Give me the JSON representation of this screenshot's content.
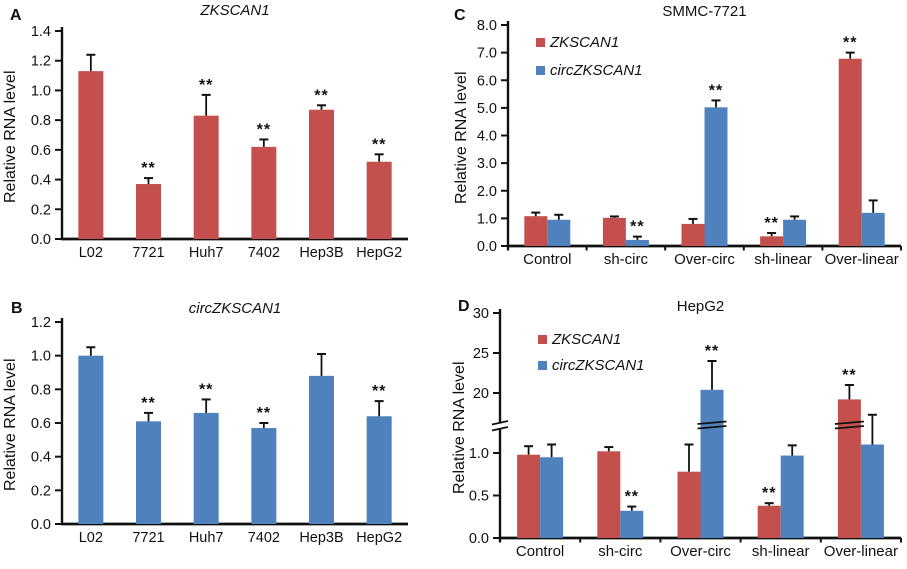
{
  "figure_title": "",
  "colors": {
    "zkscan1_series": "#C4504E",
    "circzkscan1_series": "#4F81BD",
    "ink": "#111111"
  },
  "chart_data": [
    {
      "panel_label": "A",
      "type": "bar",
      "title": "ZKSCAN1",
      "title_italic": true,
      "ylabel": "Relative RNA level",
      "xlabel": "",
      "grid": false,
      "legend": false,
      "categories": [
        "L02",
        "7721",
        "Huh7",
        "7402",
        "Hep3B",
        "HepG2"
      ],
      "axis": {
        "type": "linear",
        "min": 0,
        "max": 1.4,
        "ticks": [
          {
            "v": 0.0,
            "label": "0.0"
          },
          {
            "v": 0.2,
            "label": "0.2"
          },
          {
            "v": 0.4,
            "label": "0.4"
          },
          {
            "v": 0.6,
            "label": "0.6"
          },
          {
            "v": 0.8,
            "label": "0.8"
          },
          {
            "v": 1.0,
            "label": "1.0"
          },
          {
            "v": 1.2,
            "label": "1.2"
          },
          {
            "v": 1.4,
            "label": "1.4"
          }
        ]
      },
      "series": [
        {
          "name": "ZKSCAN1",
          "color": "#C4504E",
          "values": [
            1.13,
            0.37,
            0.83,
            0.62,
            0.87,
            0.52
          ],
          "errors": [
            0.11,
            0.04,
            0.14,
            0.05,
            0.03,
            0.05
          ],
          "sig": [
            "",
            "**",
            "**",
            "**",
            "**",
            "**"
          ]
        }
      ]
    },
    {
      "panel_label": "B",
      "type": "bar",
      "title": "circZKSCAN1",
      "title_italic": true,
      "ylabel": "Relative RNA level",
      "xlabel": "",
      "grid": false,
      "legend": false,
      "categories": [
        "L02",
        "7721",
        "Huh7",
        "7402",
        "Hep3B",
        "HepG2"
      ],
      "axis": {
        "type": "linear",
        "min": 0,
        "max": 1.2,
        "ticks": [
          {
            "v": 0.0,
            "label": "0.0"
          },
          {
            "v": 0.2,
            "label": "0.2"
          },
          {
            "v": 0.4,
            "label": "0.4"
          },
          {
            "v": 0.6,
            "label": "0.6"
          },
          {
            "v": 0.8,
            "label": "0.8"
          },
          {
            "v": 1.0,
            "label": "1.0"
          },
          {
            "v": 1.2,
            "label": "1.2"
          }
        ]
      },
      "series": [
        {
          "name": "circZKSCAN1",
          "color": "#4F81BD",
          "values": [
            1.0,
            0.61,
            0.66,
            0.57,
            0.88,
            0.64
          ],
          "errors": [
            0.05,
            0.05,
            0.08,
            0.03,
            0.13,
            0.09
          ],
          "sig": [
            "",
            "**",
            "**",
            "**",
            "",
            "**"
          ]
        }
      ]
    },
    {
      "panel_label": "C",
      "type": "bar",
      "title": "SMMC-7721",
      "title_italic": false,
      "ylabel": "Relative RNA level",
      "xlabel": "",
      "grid": false,
      "legend": true,
      "categories": [
        "Control",
        "sh-circ",
        "Over-circ",
        "sh-linear",
        "Over-linear"
      ],
      "axis": {
        "type": "linear",
        "min": 0,
        "max": 8.0,
        "ticks": [
          {
            "v": 0,
            "label": "0.0"
          },
          {
            "v": 1,
            "label": "1.0"
          },
          {
            "v": 2,
            "label": "2.0"
          },
          {
            "v": 3,
            "label": "3.0"
          },
          {
            "v": 4,
            "label": "4.0"
          },
          {
            "v": 5,
            "label": "5.0"
          },
          {
            "v": 6,
            "label": "6.0"
          },
          {
            "v": 7,
            "label": "7.0"
          },
          {
            "v": 8,
            "label": "8.0"
          }
        ]
      },
      "series": [
        {
          "name": "ZKSCAN1",
          "color": "#C4504E",
          "values": [
            1.08,
            1.02,
            0.8,
            0.35,
            6.78
          ],
          "errors": [
            0.13,
            0.05,
            0.18,
            0.12,
            0.22
          ],
          "sig": [
            "",
            "",
            "",
            "**",
            "**"
          ]
        },
        {
          "name": "circZKSCAN1",
          "color": "#4F81BD",
          "values": [
            0.95,
            0.22,
            5.02,
            0.95,
            1.2
          ],
          "errors": [
            0.18,
            0.12,
            0.25,
            0.12,
            0.45
          ],
          "sig": [
            "",
            "**",
            "**",
            "",
            ""
          ]
        }
      ]
    },
    {
      "panel_label": "D",
      "type": "bar",
      "title": "HepG2",
      "title_italic": false,
      "ylabel": "Relative RNA level",
      "xlabel": "",
      "grid": false,
      "legend": true,
      "categories": [
        "Control",
        "sh-circ",
        "Over-circ",
        "sh-linear",
        "Over-linear"
      ],
      "axis": {
        "type": "broken",
        "min": 0,
        "max": 30,
        "lower_max": 1.0,
        "upper_base": 20,
        "lower_ticks": [
          {
            "v": 0.0,
            "label": "0.0"
          },
          {
            "v": 0.5,
            "label": "0.5"
          },
          {
            "v": 1.0,
            "label": "1.0"
          }
        ],
        "upper_ticks": [
          {
            "v": 20,
            "label": "20"
          },
          {
            "v": 25,
            "label": "25"
          },
          {
            "v": 30,
            "label": "30"
          }
        ]
      },
      "series": [
        {
          "name": "ZKSCAN1",
          "color": "#C4504E",
          "values": [
            0.98,
            1.02,
            0.78,
            0.38,
            19.2
          ],
          "errors": [
            0.1,
            0.05,
            0.32,
            0.03,
            1.8
          ],
          "sig": [
            "",
            "",
            "",
            "**",
            "**"
          ]
        },
        {
          "name": "circZKSCAN1",
          "color": "#4F81BD",
          "values": [
            0.95,
            0.32,
            20.4,
            0.97,
            1.1
          ],
          "errors": [
            0.15,
            0.05,
            3.6,
            0.12,
            0.35
          ],
          "sig": [
            "",
            "**",
            "**",
            "",
            ""
          ]
        }
      ]
    }
  ]
}
